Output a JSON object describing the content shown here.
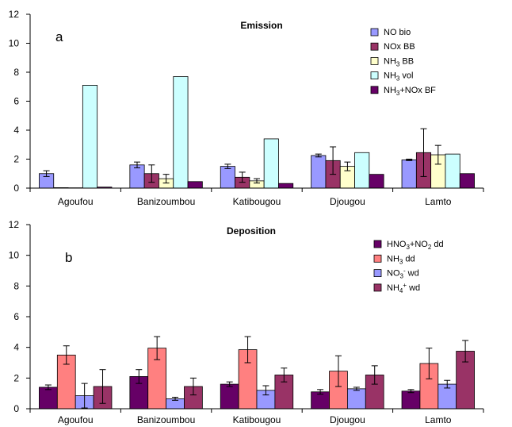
{
  "chart_data": [
    {
      "type": "bar",
      "panel_label": "a",
      "title": "Emission",
      "categories": [
        "Agoufou",
        "Banizoumbou",
        "Katibougou",
        "Djougou",
        "Lamto"
      ],
      "ylim": [
        0,
        12
      ],
      "yticks": [
        0,
        2,
        4,
        6,
        8,
        10,
        12
      ],
      "grid": false,
      "legend": "top-right",
      "series": [
        {
          "name": "NO bio",
          "legend_parts": [
            [
              "NO bio",
              ""
            ]
          ],
          "color": "#9999ff",
          "values": [
            1.0,
            1.6,
            1.5,
            2.25,
            1.95
          ],
          "errors": [
            0.2,
            0.2,
            0.15,
            0.1,
            0.05
          ]
        },
        {
          "name": "NOx BB",
          "legend_parts": [
            [
              "NOx BB",
              ""
            ]
          ],
          "color": "#993366",
          "values": [
            0.03,
            1.0,
            0.75,
            1.9,
            2.45
          ],
          "errors": [
            0,
            0.6,
            0.35,
            0.95,
            1.65
          ]
        },
        {
          "name": "NH3 BB",
          "legend_parts": [
            [
              "NH",
              ""
            ],
            [
              "3",
              "sub"
            ],
            [
              " BB",
              ""
            ]
          ],
          "color": "#ffffcc",
          "values": [
            0.02,
            0.65,
            0.5,
            1.5,
            2.3
          ],
          "errors": [
            0,
            0.3,
            0.15,
            0.3,
            0.65
          ]
        },
        {
          "name": "NH3 vol",
          "legend_parts": [
            [
              "NH",
              ""
            ],
            [
              "3",
              "sub"
            ],
            [
              " vol",
              ""
            ]
          ],
          "color": "#ccffff",
          "values": [
            7.1,
            7.7,
            3.4,
            2.45,
            2.35
          ],
          "errors": [
            0,
            0,
            0,
            0,
            0
          ]
        },
        {
          "name": "NH3+NOx BF",
          "legend_parts": [
            [
              "NH",
              ""
            ],
            [
              "3",
              "sub"
            ],
            [
              "+NOx BF",
              ""
            ]
          ],
          "color": "#660066",
          "values": [
            0.07,
            0.45,
            0.32,
            0.95,
            1.0
          ],
          "errors": [
            0,
            0,
            0,
            0,
            0
          ]
        }
      ]
    },
    {
      "type": "bar",
      "panel_label": "b",
      "title": "Deposition",
      "categories": [
        "Agoufou",
        "Banizoumbou",
        "Katibougou",
        "Djougou",
        "Lamto"
      ],
      "ylim": [
        0,
        12
      ],
      "yticks": [
        0,
        2,
        4,
        6,
        8,
        10,
        12
      ],
      "grid": false,
      "legend": "top-right",
      "series": [
        {
          "name": "HNO3+NO2 dd",
          "legend_parts": [
            [
              "HNO",
              ""
            ],
            [
              "3",
              "sub"
            ],
            [
              "+NO",
              ""
            ],
            [
              "2",
              "sub"
            ],
            [
              " dd",
              ""
            ]
          ],
          "color": "#660066",
          "values": [
            1.4,
            2.1,
            1.6,
            1.1,
            1.15
          ],
          "errors": [
            0.15,
            0.45,
            0.15,
            0.15,
            0.1
          ]
        },
        {
          "name": "NH3 dd",
          "legend_parts": [
            [
              "NH",
              ""
            ],
            [
              "3",
              "sub"
            ],
            [
              " dd",
              ""
            ]
          ],
          "color": "#ff8080",
          "values": [
            3.5,
            3.95,
            3.85,
            2.45,
            2.95
          ],
          "errors": [
            0.6,
            0.75,
            0.85,
            1.0,
            1.0
          ]
        },
        {
          "name": "NO3- wd",
          "legend_parts": [
            [
              "NO",
              ""
            ],
            [
              "3",
              "sub"
            ],
            [
              "-",
              "sup"
            ],
            [
              " wd",
              ""
            ]
          ],
          "color": "#9999ff",
          "values": [
            0.85,
            0.65,
            1.2,
            1.3,
            1.6
          ],
          "errors": [
            0.8,
            0.1,
            0.3,
            0.1,
            0.25
          ]
        },
        {
          "name": "NH4+ wd",
          "legend_parts": [
            [
              "NH",
              ""
            ],
            [
              "4",
              "sub"
            ],
            [
              "+",
              "sup"
            ],
            [
              " wd",
              ""
            ]
          ],
          "color": "#993366",
          "values": [
            1.45,
            1.45,
            2.2,
            2.2,
            3.75
          ],
          "errors": [
            1.1,
            0.55,
            0.45,
            0.6,
            0.7
          ]
        }
      ]
    }
  ]
}
